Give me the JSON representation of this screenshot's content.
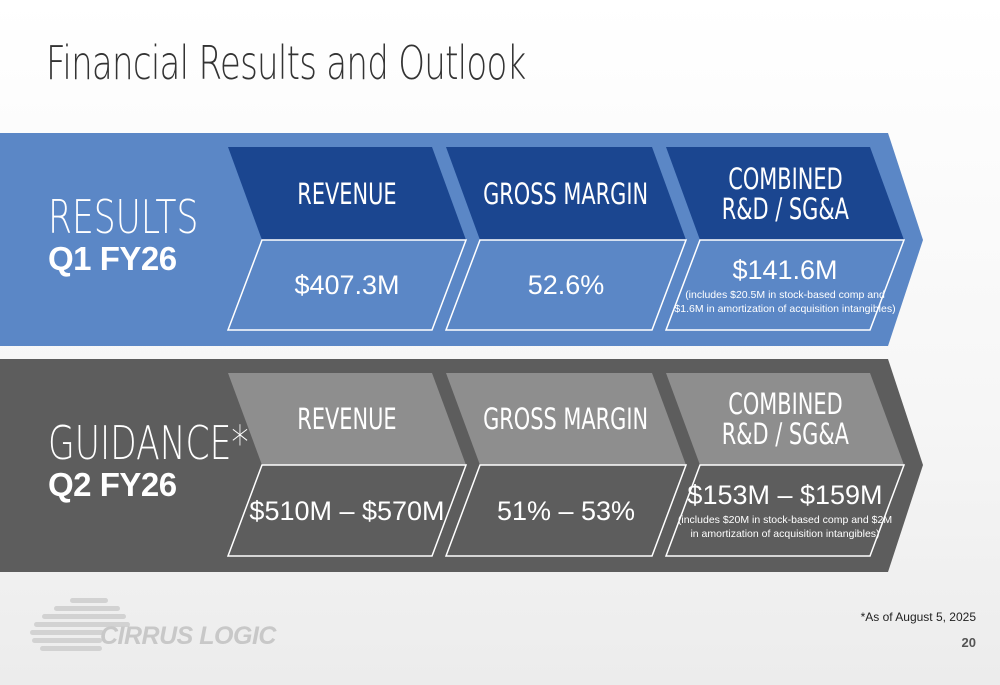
{
  "title": "Financial Results and Outlook",
  "colors": {
    "results_band": "#5b87c6",
    "results_header": "#1b4690",
    "results_value": "#5b87c6",
    "guidance_band": "#5d5d5d",
    "guidance_header": "#8e8e8e",
    "guidance_value": "#5d5d5d"
  },
  "results": {
    "label": "RESULTS",
    "period": "Q1 FY26",
    "revenue": {
      "header": "REVENUE",
      "value": "$407.3M"
    },
    "gross_margin": {
      "header": "GROSS MARGIN",
      "value": "52.6%"
    },
    "opex": {
      "header_line1": "COMBINED",
      "header_line2": "R&D / SG&A",
      "value": "$141.6M",
      "note_line1": "(includes $20.5M in stock-based comp and",
      "note_line2": "$1.6M in amortization of acquisition intangibles)"
    }
  },
  "guidance": {
    "label": "GUIDANCE*",
    "period": "Q2 FY26",
    "revenue": {
      "header": "REVENUE",
      "value": "$510M – $570M"
    },
    "gross_margin": {
      "header": "GROSS MARGIN",
      "value": "51% – 53%"
    },
    "opex": {
      "header_line1": "COMBINED",
      "header_line2": "R&D / SG&A",
      "value": "$153M – $159M",
      "note_line1": "(includes $20M in stock-based comp and $2M",
      "note_line2": "in amortization of acquisition intangibles)"
    }
  },
  "footnote": "*As of August 5, 2025",
  "page_number": "20",
  "logo": {
    "text": "CIRRUS LOGIC",
    "icon": "cirrus-logic-cloud-icon"
  }
}
